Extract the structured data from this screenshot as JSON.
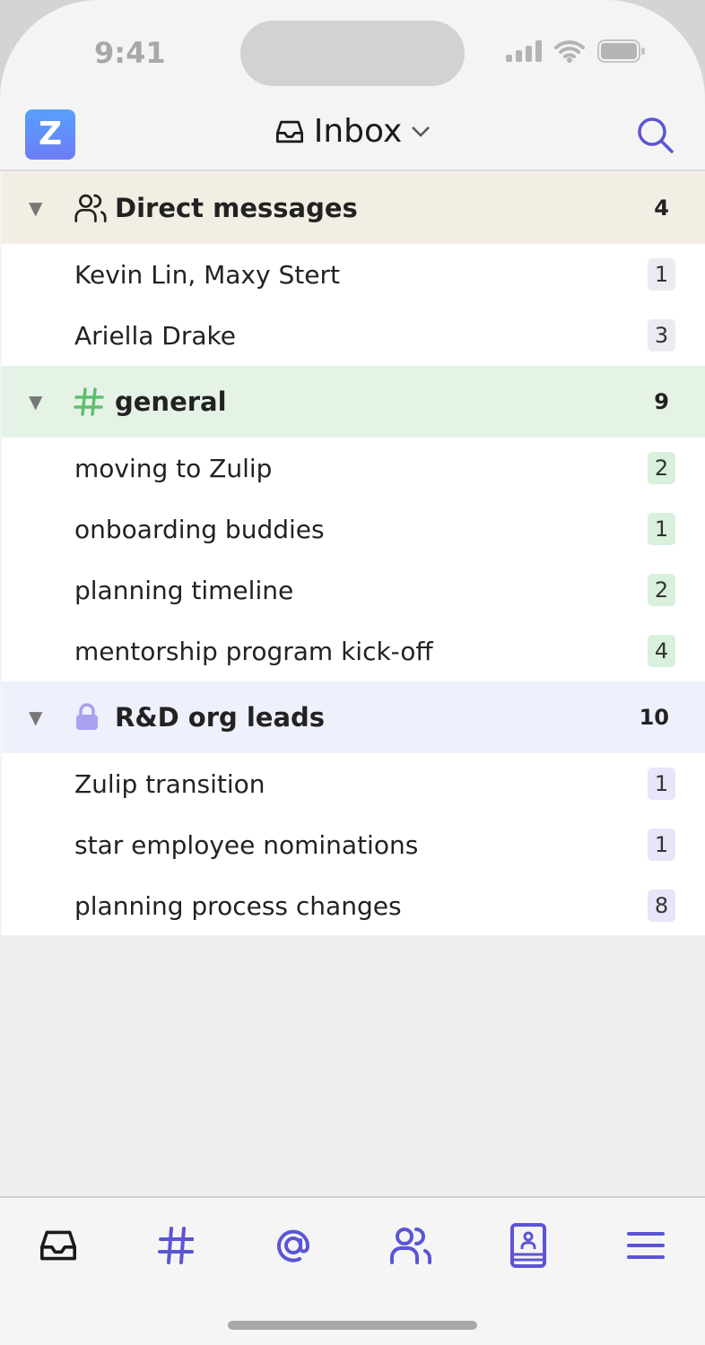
{
  "status": {
    "time": "9:41"
  },
  "header": {
    "logo": "Z",
    "title": "Inbox",
    "title_icon": "inbox-icon",
    "search_icon": "search-icon"
  },
  "sections": [
    {
      "name": "Direct messages",
      "icon": "people-icon",
      "count": "4",
      "bg": "#f3eee4",
      "badge_bg": "#ebebf1",
      "items": [
        {
          "label": "Kevin Lin, Maxy Stert",
          "count": "1"
        },
        {
          "label": "Ariella Drake",
          "count": "3"
        }
      ]
    },
    {
      "name": "general",
      "icon": "hash-icon",
      "count": "9",
      "bg": "#e5f3e6",
      "badge_bg": "#d8f0dc",
      "items": [
        {
          "label": "moving to Zulip",
          "count": "2"
        },
        {
          "label": "onboarding buddies",
          "count": "1"
        },
        {
          "label": "planning timeline",
          "count": "2"
        },
        {
          "label": "mentorship program kick-off",
          "count": "4"
        }
      ]
    },
    {
      "name": "R&D org leads",
      "icon": "lock-icon",
      "count": "10",
      "bg": "#eef0fc",
      "badge_bg": "#e6e6f8",
      "items": [
        {
          "label": "Zulip transition",
          "count": "1"
        },
        {
          "label": "star employee nominations",
          "count": "1"
        },
        {
          "label": "planning process changes",
          "count": "8"
        }
      ]
    }
  ],
  "tabs": [
    "inbox",
    "channels",
    "mentions",
    "direct-messages",
    "profile",
    "menu"
  ],
  "colors": {
    "accent": "#5b55d6",
    "green": "#5fbf6f",
    "lock": "#a9a2ee"
  }
}
